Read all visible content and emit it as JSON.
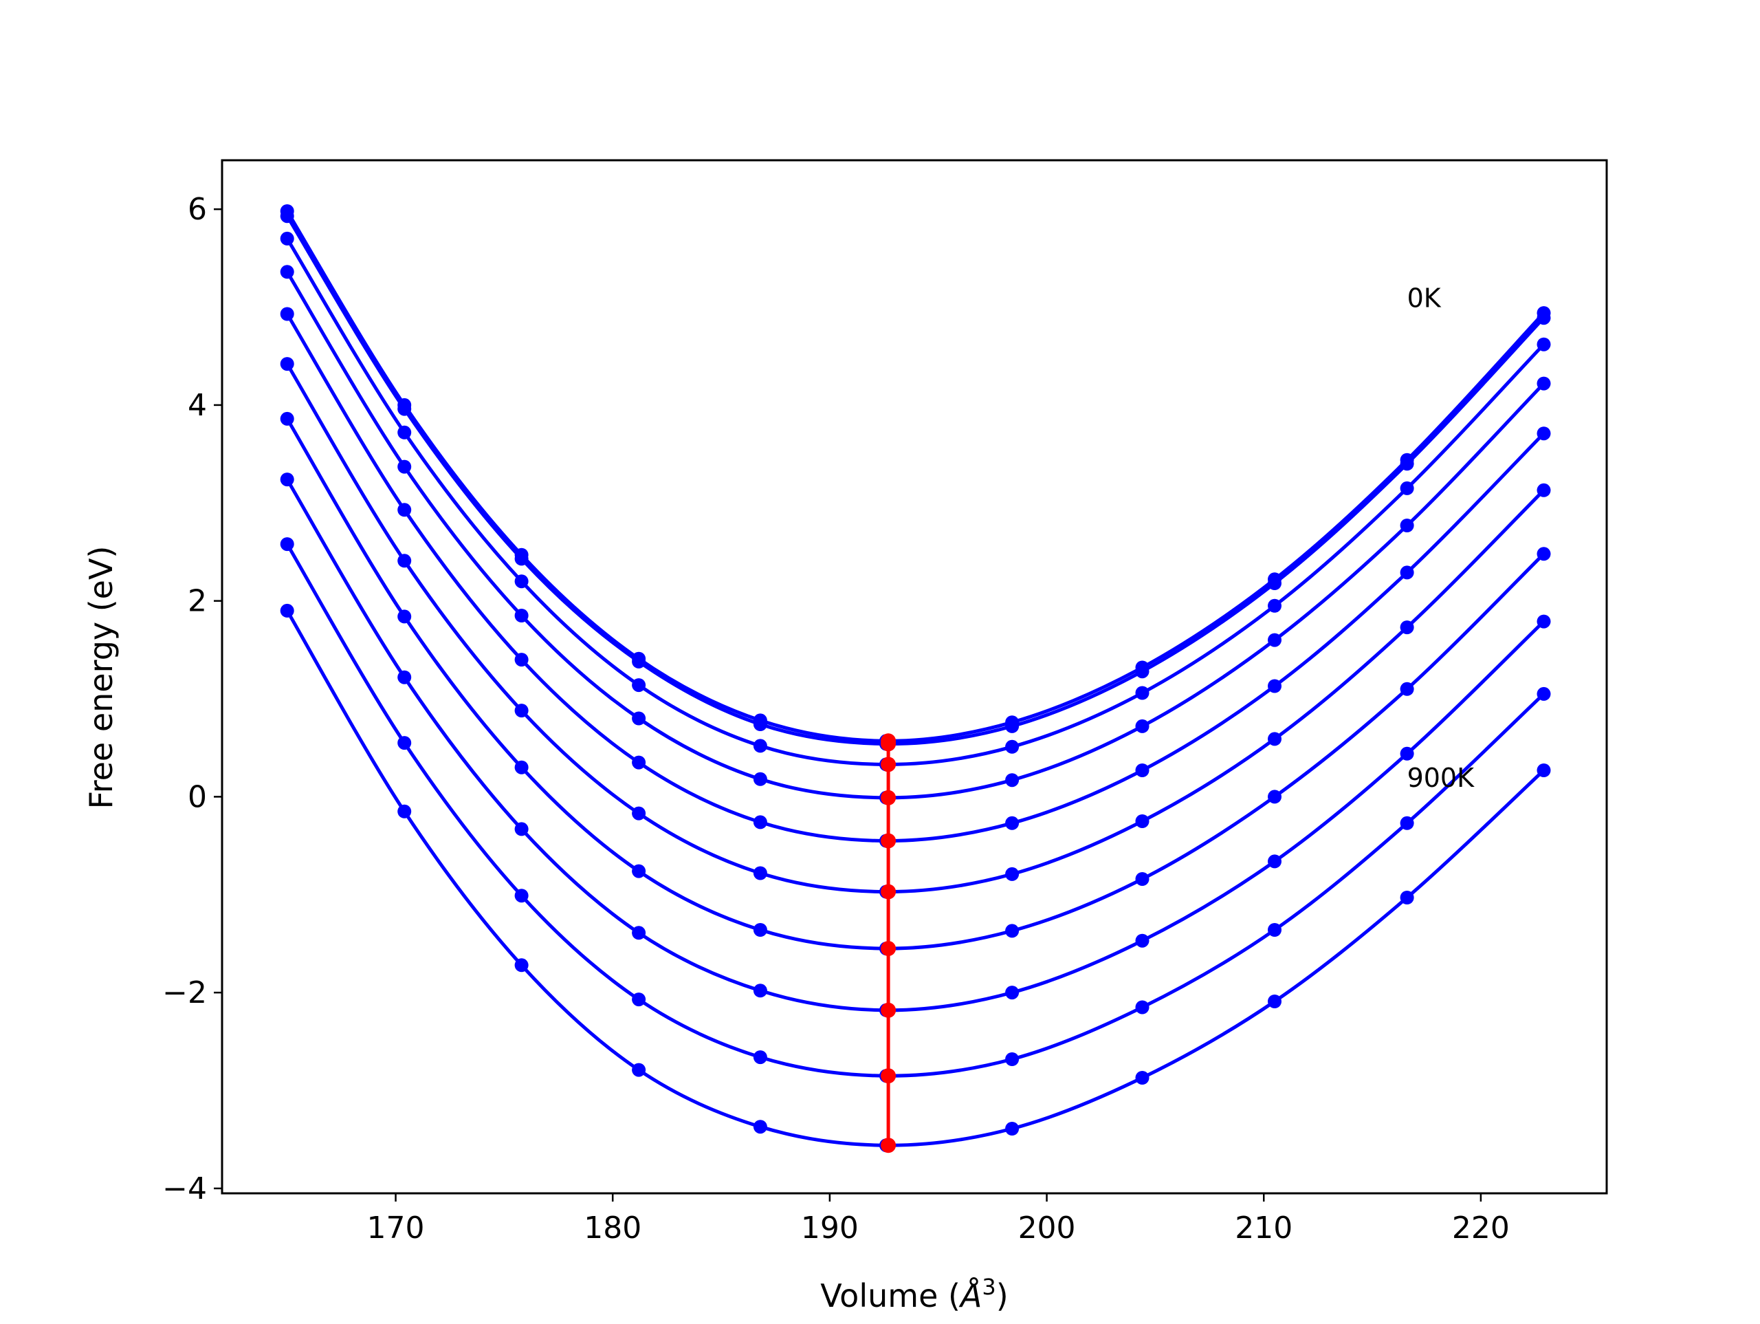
{
  "chart_data": {
    "type": "line",
    "xlabel_prefix": "Volume (",
    "xlabel_unit": "Å",
    "xlabel_exp": "3",
    "xlabel_suffix": ")",
    "ylabel": "Free energy (eV)",
    "xlim": [
      162.0,
      225.8
    ],
    "ylim": [
      -4.05,
      6.5
    ],
    "x_ticks": [
      170,
      180,
      190,
      200,
      210,
      220
    ],
    "y_ticks": [
      -4,
      -2,
      0,
      2,
      4,
      6
    ],
    "y_tick_labels": [
      "−4",
      "−2",
      "0",
      "2",
      "4",
      "6"
    ],
    "grid": false,
    "legend": "none",
    "line_color": "#0000ff",
    "min_color": "#ff0000",
    "annotations": [
      {
        "text": "0K",
        "x": 216.6,
        "y": 5.0
      },
      {
        "text": "900K",
        "x": 216.6,
        "y": 0.1
      }
    ],
    "x": [
      165.0,
      170.4,
      175.8,
      181.2,
      186.8,
      192.6,
      198.4,
      204.4,
      210.5,
      216.6,
      222.9
    ],
    "series": [
      {
        "values": [
          5.98,
          4.0,
          2.47,
          1.41,
          0.78,
          0.57,
          0.76,
          1.32,
          2.22,
          3.44,
          4.94
        ]
      },
      {
        "values": [
          5.93,
          3.96,
          2.43,
          1.38,
          0.74,
          0.54,
          0.72,
          1.28,
          2.18,
          3.4,
          4.89
        ]
      },
      {
        "values": [
          5.7,
          3.72,
          2.2,
          1.14,
          0.52,
          0.33,
          0.51,
          1.06,
          1.95,
          3.15,
          4.62
        ]
      },
      {
        "values": [
          5.36,
          3.37,
          1.85,
          0.8,
          0.18,
          -0.01,
          0.17,
          0.72,
          1.6,
          2.77,
          4.22
        ]
      },
      {
        "values": [
          4.93,
          2.93,
          1.4,
          0.35,
          -0.26,
          -0.45,
          -0.27,
          0.27,
          1.13,
          2.29,
          3.71
        ]
      },
      {
        "values": [
          4.42,
          2.41,
          0.88,
          -0.17,
          -0.78,
          -0.97,
          -0.79,
          -0.25,
          0.59,
          1.73,
          3.13
        ]
      },
      {
        "values": [
          3.86,
          1.84,
          0.3,
          -0.76,
          -1.36,
          -1.55,
          -1.37,
          -0.84,
          0.0,
          1.1,
          2.48
        ]
      },
      {
        "values": [
          3.24,
          1.22,
          -0.33,
          -1.39,
          -1.98,
          -2.18,
          -2.0,
          -1.47,
          -0.66,
          0.44,
          1.79
        ]
      },
      {
        "values": [
          2.58,
          0.55,
          -1.01,
          -2.07,
          -2.66,
          -2.85,
          -2.68,
          -2.15,
          -1.36,
          -0.27,
          1.05
        ]
      },
      {
        "values": [
          1.9,
          -0.15,
          -1.72,
          -2.79,
          -3.37,
          -3.56,
          -3.39,
          -2.87,
          -2.09,
          -1.03,
          0.27
        ]
      }
    ],
    "minima": {
      "x": [
        192.7,
        192.7,
        192.7,
        192.7,
        192.7,
        192.7,
        192.7,
        192.7,
        192.7,
        192.7
      ],
      "y": [
        0.57,
        0.54,
        0.33,
        -0.01,
        -0.45,
        -0.97,
        -1.55,
        -2.18,
        -2.85,
        -3.56
      ]
    }
  }
}
